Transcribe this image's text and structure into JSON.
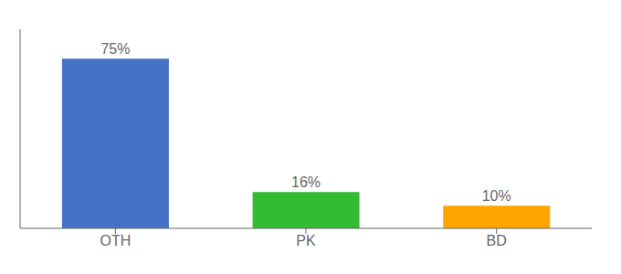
{
  "chart_data": {
    "type": "bar",
    "categories": [
      "OTH",
      "PK",
      "BD"
    ],
    "values": [
      75,
      16,
      10
    ],
    "value_labels": [
      "75%",
      "16%",
      "10%"
    ],
    "data_labels": true,
    "colors": [
      "#4472C4",
      "#33BB33",
      "#FFA500"
    ],
    "ylim": [
      0,
      88
    ],
    "tick_labels": "x"
  }
}
